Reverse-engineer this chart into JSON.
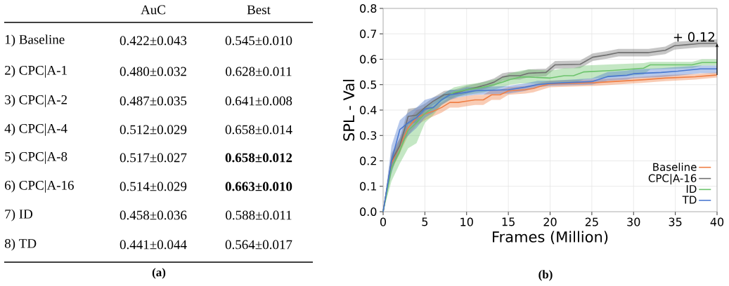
{
  "chart_data": [
    {
      "type": "other",
      "categories": [
        "1) Baseline",
        "2) CPC|A-1",
        "3) CPC|A-2",
        "4) CPC|A-4",
        "5) CPC|A-8",
        "6) CPC|A-16",
        "7) ID",
        "8) TD"
      ],
      "series": [
        {
          "name": "AuC",
          "values": [
            0.422,
            0.48,
            0.487,
            0.512,
            0.517,
            0.514,
            0.458,
            0.441
          ],
          "value_labels": [
            "0.422±0.043",
            "0.480±0.032",
            "0.487±0.035",
            "0.512±0.029",
            "0.517±0.027",
            "0.514±0.029",
            "0.458±0.036",
            "0.441±0.044"
          ]
        },
        {
          "name": "Best",
          "values": [
            0.545,
            0.628,
            0.641,
            0.658,
            0.658,
            0.663,
            0.588,
            0.564
          ],
          "value_labels": [
            "0.545±0.010",
            "0.628±0.011",
            "0.641±0.008",
            "0.658±0.014",
            "**0.658±0.012**",
            "**0.663±0.010**",
            "0.588±0.011",
            "0.564±0.017"
          ]
        }
      ],
      "annotations": [
        "(a)"
      ]
    },
    {
      "type": "line",
      "xlabel": "Frames (Million)",
      "ylabel": "SPL - Val",
      "xlim": [
        0,
        40
      ],
      "xticks": [
        0,
        5,
        10,
        15,
        20,
        25,
        30,
        35,
        40
      ],
      "ylim": [
        0,
        0.8
      ],
      "yticks": [
        {
          "value": 0,
          "label": "0.0"
        },
        0.1,
        0.2,
        0.3,
        0.4,
        0.5,
        0.6,
        0.7,
        0.8
      ],
      "grid": true,
      "legend": "bottom right",
      "marker": "none",
      "line_style": "solid",
      "series": [
        {
          "name": "Baseline",
          "color": "#ef7f45",
          "x": [
            0,
            1,
            2,
            3,
            4,
            5,
            6,
            7,
            8,
            9,
            10,
            11,
            12,
            13,
            14,
            15,
            17,
            18,
            19,
            20,
            25.4,
            31,
            33.8,
            37.4,
            40
          ],
          "values": [
            0,
            0.19,
            0.26,
            0.33,
            0.37,
            0.385,
            0.395,
            0.41,
            0.43,
            0.43,
            0.435,
            0.44,
            0.44,
            0.46,
            0.46,
            0.475,
            0.48,
            0.485,
            0.495,
            0.503,
            0.508,
            0.519,
            0.526,
            0.531,
            0.538
          ],
          "lower": [
            0,
            0.16,
            0.23,
            0.3,
            0.34,
            0.36,
            0.375,
            0.39,
            0.41,
            0.41,
            0.415,
            0.42,
            0.42,
            0.44,
            0.44,
            0.46,
            0.465,
            0.47,
            0.48,
            0.49,
            0.495,
            0.507,
            0.514,
            0.52,
            0.528
          ],
          "upper": [
            0,
            0.22,
            0.29,
            0.36,
            0.4,
            0.41,
            0.415,
            0.43,
            0.45,
            0.45,
            0.455,
            0.46,
            0.46,
            0.48,
            0.48,
            0.49,
            0.495,
            0.5,
            0.51,
            0.516,
            0.521,
            0.531,
            0.538,
            0.542,
            0.548
          ]
        },
        {
          "name": "CPC|A-16",
          "color": "#707070",
          "x": [
            0,
            1,
            2,
            3,
            4,
            5,
            6,
            7.3,
            8.5,
            10,
            11.3,
            12.4,
            13.3,
            14.3,
            15.2,
            16.4,
            17.4,
            19.5,
            20.6,
            23.6,
            25.1,
            26.8,
            28.2,
            31.8,
            33.8,
            34.9,
            36.3,
            38,
            40
          ],
          "values": [
            0,
            0.2,
            0.26,
            0.375,
            0.38,
            0.41,
            0.435,
            0.46,
            0.465,
            0.48,
            0.49,
            0.5,
            0.51,
            0.53,
            0.535,
            0.535,
            0.545,
            0.548,
            0.578,
            0.58,
            0.608,
            0.617,
            0.626,
            0.626,
            0.635,
            0.653,
            0.657,
            0.662,
            0.663
          ],
          "lower": [
            0,
            0.17,
            0.23,
            0.345,
            0.35,
            0.395,
            0.42,
            0.445,
            0.45,
            0.465,
            0.475,
            0.485,
            0.495,
            0.515,
            0.52,
            0.52,
            0.53,
            0.533,
            0.563,
            0.565,
            0.593,
            0.602,
            0.611,
            0.611,
            0.62,
            0.638,
            0.642,
            0.647,
            0.648
          ],
          "upper": [
            0,
            0.23,
            0.29,
            0.405,
            0.41,
            0.425,
            0.45,
            0.475,
            0.48,
            0.495,
            0.505,
            0.515,
            0.525,
            0.545,
            0.55,
            0.55,
            0.56,
            0.563,
            0.593,
            0.595,
            0.623,
            0.632,
            0.641,
            0.641,
            0.65,
            0.668,
            0.672,
            0.677,
            0.678
          ]
        },
        {
          "name": "ID",
          "color": "#6cc36c",
          "x": [
            0,
            1,
            2,
            3,
            4,
            5,
            6,
            7,
            8.5,
            10,
            12,
            13.3,
            14.3,
            15.2,
            16.5,
            17.5,
            20,
            21.7,
            22.8,
            24,
            27.5,
            31.2,
            32,
            37,
            38.2,
            40
          ],
          "values": [
            0,
            0.17,
            0.24,
            0.32,
            0.35,
            0.386,
            0.41,
            0.44,
            0.47,
            0.48,
            0.49,
            0.5,
            0.51,
            0.52,
            0.53,
            0.53,
            0.526,
            0.535,
            0.535,
            0.55,
            0.556,
            0.565,
            0.578,
            0.578,
            0.587,
            0.587
          ],
          "lower": [
            0,
            0.12,
            0.19,
            0.25,
            0.27,
            0.35,
            0.38,
            0.42,
            0.45,
            0.46,
            0.47,
            0.48,
            0.49,
            0.5,
            0.505,
            0.505,
            0.5,
            0.505,
            0.505,
            0.52,
            0.53,
            0.54,
            0.56,
            0.565,
            0.575,
            0.575
          ],
          "upper": [
            0,
            0.2,
            0.28,
            0.35,
            0.39,
            0.41,
            0.43,
            0.46,
            0.49,
            0.5,
            0.51,
            0.52,
            0.53,
            0.545,
            0.555,
            0.56,
            0.555,
            0.565,
            0.565,
            0.575,
            0.58,
            0.585,
            0.59,
            0.59,
            0.6,
            0.6
          ]
        },
        {
          "name": "TD",
          "color": "#4a78d0",
          "x": [
            0,
            1,
            2,
            3,
            4,
            5,
            6,
            7,
            8,
            9,
            10,
            11,
            15,
            17,
            18.5,
            20,
            25,
            26.9,
            29.2,
            30,
            33.3,
            35.3,
            38,
            40
          ],
          "values": [
            0,
            0.2,
            0.323,
            0.35,
            0.37,
            0.404,
            0.41,
            0.44,
            0.46,
            0.465,
            0.47,
            0.476,
            0.48,
            0.49,
            0.5,
            0.505,
            0.512,
            0.532,
            0.537,
            0.543,
            0.548,
            0.553,
            0.562,
            0.562
          ],
          "lower": [
            0,
            0.15,
            0.26,
            0.3,
            0.33,
            0.37,
            0.39,
            0.42,
            0.44,
            0.45,
            0.455,
            0.46,
            0.465,
            0.475,
            0.49,
            0.495,
            0.5,
            0.515,
            0.52,
            0.525,
            0.53,
            0.535,
            0.545,
            0.545
          ],
          "upper": [
            0,
            0.26,
            0.36,
            0.39,
            0.41,
            0.44,
            0.45,
            0.46,
            0.48,
            0.48,
            0.49,
            0.49,
            0.495,
            0.505,
            0.515,
            0.515,
            0.525,
            0.55,
            0.555,
            0.56,
            0.565,
            0.57,
            0.575,
            0.575
          ]
        }
      ],
      "annotations": [
        "(b)",
        {
          "text": "+ 0.12",
          "x": 40,
          "y": 0.663
        }
      ]
    }
  ]
}
